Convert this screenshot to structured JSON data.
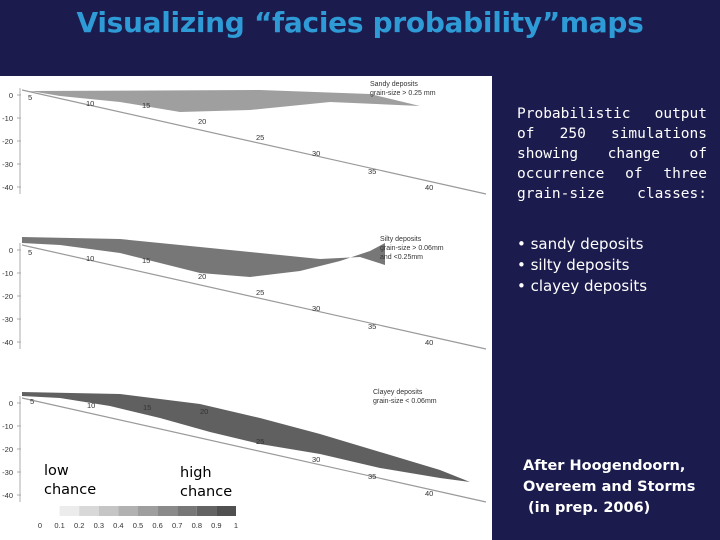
{
  "title": "Visualizing “facies probability”maps",
  "caption_lines": [
    "Probabilistic output",
    "of 250 simulations",
    "showing change of",
    "occurrence of three",
    "grain-size classes:"
  ],
  "bullets": [
    "• sandy deposits",
    "• silty deposits",
    "• clayey deposits"
  ],
  "credit_lines": [
    "After Hoogendoorn,",
    "Overeem and Storms",
    " (in prep. 2006)"
  ],
  "legend": {
    "low_lines": [
      "low",
      "chance"
    ],
    "high_lines": [
      "high",
      "chance"
    ],
    "ticks": [
      "0",
      "0.1",
      "0.2",
      "0.3",
      "0.4",
      "0.5",
      "0.6",
      "0.7",
      "0.8",
      "0.9",
      "1"
    ]
  },
  "panels": [
    {
      "label_lines": [
        "Sandy deposits",
        "grain-size > 0.25 mm"
      ],
      "y_ticks": [
        "0",
        "-10",
        "-20",
        "-30",
        "-40"
      ],
      "x_ticks": [
        "5",
        "10",
        "15",
        "20",
        "25",
        "30",
        "35",
        "40"
      ]
    },
    {
      "label_lines": [
        "Silty deposits",
        "grain-size > 0.06mm",
        "and <0.25mm"
      ],
      "y_ticks": [
        "0",
        "-10",
        "-20",
        "-30",
        "-40"
      ],
      "x_ticks": [
        "5",
        "10",
        "15",
        "20",
        "25",
        "30",
        "35",
        "40"
      ]
    },
    {
      "label_lines": [
        "Clayey deposits",
        "grain-size < 0.06mm"
      ],
      "y_ticks": [
        "0",
        "-10",
        "-20",
        "-30",
        "-40"
      ],
      "x_ticks": [
        "5",
        "10",
        "15",
        "20",
        "25",
        "30",
        "35",
        "40"
      ]
    }
  ]
}
